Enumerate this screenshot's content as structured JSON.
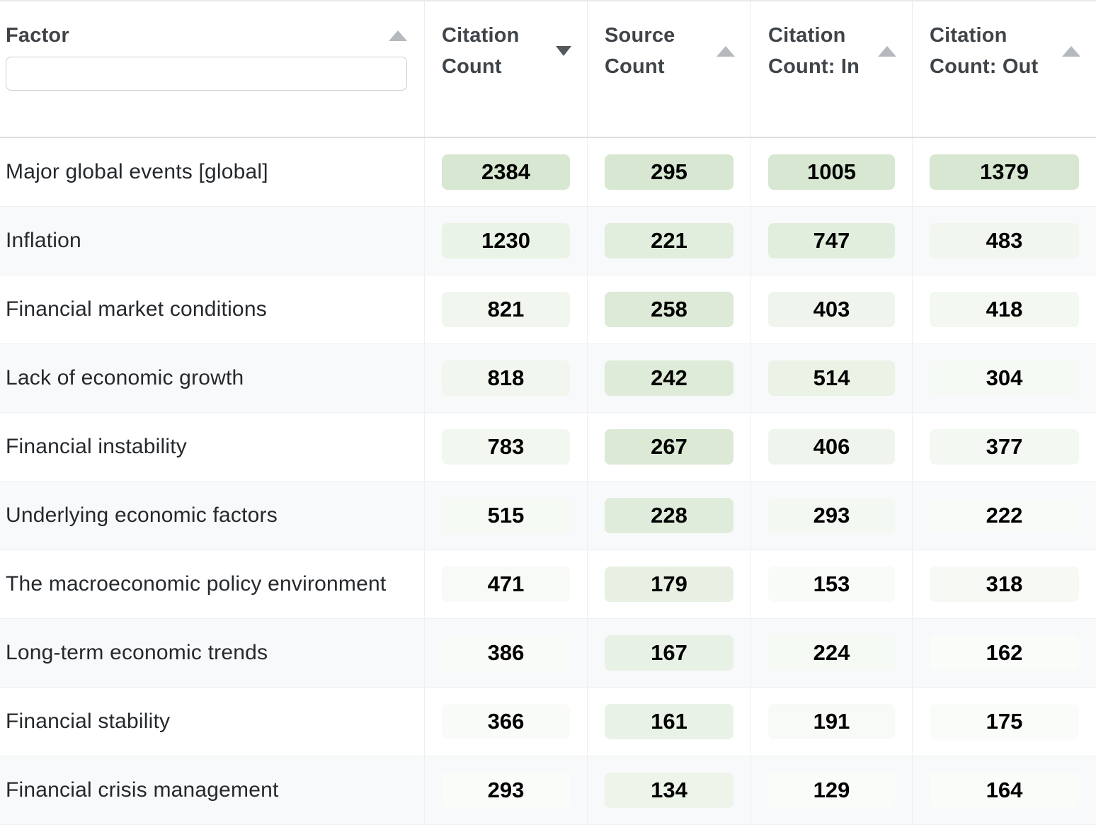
{
  "table": {
    "columns": [
      {
        "id": "factor",
        "label": "Factor",
        "sort_icon": "triangle-up",
        "sort_active": false,
        "has_filter": true,
        "filter_value": ""
      },
      {
        "id": "citation_count",
        "label": "Citation Count",
        "sort_icon": "triangle-down",
        "sort_active": true
      },
      {
        "id": "source_count",
        "label": "Source Count",
        "sort_icon": "triangle-up",
        "sort_active": false
      },
      {
        "id": "citation_count_in",
        "label": "Citation Count: In",
        "sort_icon": "triangle-up",
        "sort_active": false
      },
      {
        "id": "citation_count_out",
        "label": "Citation Count: Out",
        "sort_icon": "triangle-up",
        "sort_active": false
      }
    ],
    "rows": [
      {
        "factor": "Major global events [global]",
        "citation_count": 2384,
        "source_count": 295,
        "citation_count_in": 1005,
        "citation_count_out": 1379
      },
      {
        "factor": "Inflation",
        "citation_count": 1230,
        "source_count": 221,
        "citation_count_in": 747,
        "citation_count_out": 483
      },
      {
        "factor": "Financial market conditions",
        "citation_count": 821,
        "source_count": 258,
        "citation_count_in": 403,
        "citation_count_out": 418
      },
      {
        "factor": "Lack of economic growth",
        "citation_count": 818,
        "source_count": 242,
        "citation_count_in": 514,
        "citation_count_out": 304
      },
      {
        "factor": "Financial instability",
        "citation_count": 783,
        "source_count": 267,
        "citation_count_in": 406,
        "citation_count_out": 377
      },
      {
        "factor": "Underlying economic factors",
        "citation_count": 515,
        "source_count": 228,
        "citation_count_in": 293,
        "citation_count_out": 222
      },
      {
        "factor": "The macroeconomic policy environment",
        "citation_count": 471,
        "source_count": 179,
        "citation_count_in": 153,
        "citation_count_out": 318
      },
      {
        "factor": "Long-term economic trends",
        "citation_count": 386,
        "source_count": 167,
        "citation_count_in": 224,
        "citation_count_out": 162
      },
      {
        "factor": "Financial stability",
        "citation_count": 366,
        "source_count": 161,
        "citation_count_in": 191,
        "citation_count_out": 175
      },
      {
        "factor": "Financial crisis management",
        "citation_count": 293,
        "source_count": 134,
        "citation_count_in": 129,
        "citation_count_out": 164
      }
    ],
    "heatmap": {
      "low_color": "#ffffff",
      "high_color": "#d7e7d1",
      "normalization": "value / column max, per column"
    },
    "stripe_color": "#f8f9fa"
  }
}
